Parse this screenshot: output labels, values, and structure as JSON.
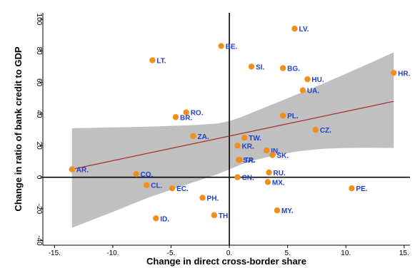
{
  "chart_data": {
    "type": "scatter",
    "xlabel": "Change in direct cross-border share",
    "ylabel": "Change in ratio of bank credit to GDP",
    "xlim": [
      -16,
      15.5
    ],
    "ylim": [
      -43,
      104
    ],
    "x_ticks": [
      -15,
      -10,
      -5,
      0,
      5,
      10,
      15
    ],
    "x_tick_labels": [
      "-15.",
      "-10.",
      "-5.",
      "0.",
      "5.",
      "10.",
      "15."
    ],
    "y_ticks": [
      -40,
      -20,
      0,
      20,
      40,
      60,
      80,
      100
    ],
    "y_tick_labels": [
      "-40",
      "-20",
      "0",
      "20",
      "40",
      "60",
      "80",
      "100"
    ],
    "grid": false,
    "reference_lines": {
      "x": 0,
      "y": 0
    },
    "colors": {
      "points": "#f28e1c",
      "labels": "#1f3fd0",
      "fit_line": "#a52a2a",
      "confidence_band": "#c0c0c0"
    },
    "points": [
      {
        "label": "LV.",
        "x": 5.6,
        "y": 94
      },
      {
        "label": "BE.",
        "x": -0.7,
        "y": 83
      },
      {
        "label": "LT.",
        "x": -6.6,
        "y": 74
      },
      {
        "label": "SI.",
        "x": 1.9,
        "y": 70
      },
      {
        "label": "BG.",
        "x": 4.6,
        "y": 69
      },
      {
        "label": "HR.",
        "x": 14.1,
        "y": 66
      },
      {
        "label": "HU.",
        "x": 6.7,
        "y": 62
      },
      {
        "label": "UA.",
        "x": 6.3,
        "y": 55
      },
      {
        "label": "RO.",
        "x": -3.7,
        "y": 41
      },
      {
        "label": "PL.",
        "x": 4.6,
        "y": 39
      },
      {
        "label": "BR.",
        "x": -4.6,
        "y": 38
      },
      {
        "label": "CZ.",
        "x": 7.4,
        "y": 30
      },
      {
        "label": "ZA.",
        "x": -3.1,
        "y": 26
      },
      {
        "label": "TW.",
        "x": 1.3,
        "y": 25
      },
      {
        "label": "KR.",
        "x": 0.7,
        "y": 20
      },
      {
        "label": "IN.",
        "x": 3.2,
        "y": 17
      },
      {
        "label": "SK.",
        "x": 3.7,
        "y": 14
      },
      {
        "label": "SA.",
        "x": 0.8,
        "y": 11
      },
      {
        "label": "TR.",
        "x": 0.9,
        "y": 11
      },
      {
        "label": "AR.",
        "x": -13.5,
        "y": 5
      },
      {
        "label": "RU.",
        "x": 3.4,
        "y": 3
      },
      {
        "label": "CO.",
        "x": -8.0,
        "y": 2
      },
      {
        "label": "CN.",
        "x": 0.7,
        "y": 0
      },
      {
        "label": "MX.",
        "x": 3.3,
        "y": -3
      },
      {
        "label": "CL.",
        "x": -7.1,
        "y": -5
      },
      {
        "label": "EC.",
        "x": -4.9,
        "y": -7
      },
      {
        "label": "PE.",
        "x": 10.5,
        "y": -7
      },
      {
        "label": "PH.",
        "x": -2.3,
        "y": -13
      },
      {
        "label": "MY.",
        "x": 4.1,
        "y": -21
      },
      {
        "label": "TH.",
        "x": -1.3,
        "y": -24
      },
      {
        "label": "ID.",
        "x": -6.3,
        "y": -26
      }
    ],
    "fit_line": {
      "x": [
        -13.5,
        14.1
      ],
      "y": [
        5,
        48
      ]
    },
    "confidence_band": {
      "x": [
        -13.5,
        -10,
        -7,
        -5,
        -3,
        -1,
        0,
        1,
        2,
        4,
        6,
        8,
        10,
        12,
        14.1
      ],
      "upper": [
        31,
        31.5,
        32,
        32.5,
        33,
        34,
        35.5,
        38,
        41,
        47,
        53,
        59,
        65.5,
        72,
        79
      ],
      "lower": [
        -32,
        -22,
        -13,
        -8,
        -3,
        2,
        5,
        8,
        10.5,
        14,
        16.5,
        18,
        18.5,
        18.7,
        18.5
      ]
    }
  }
}
